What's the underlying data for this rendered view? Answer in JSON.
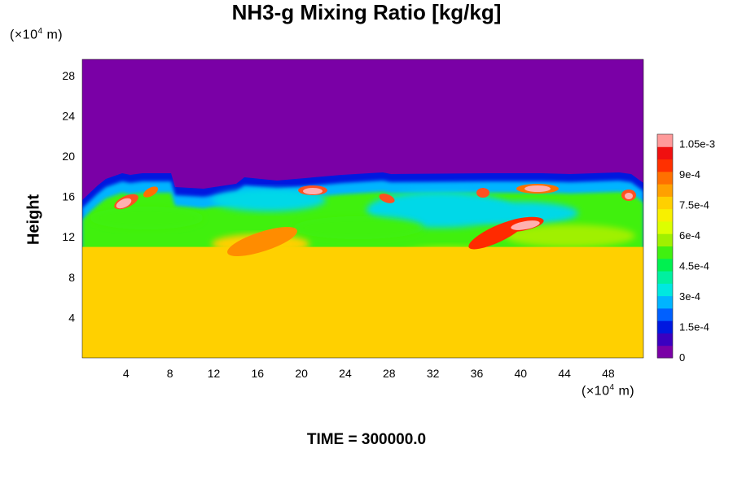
{
  "chart_data": {
    "type": "heatmap",
    "title": "NH3-g Mixing Ratio [kg/kg]",
    "ylabel": "Height",
    "xlabel": "",
    "x_unit_prefix": "(×10",
    "x_unit_exp": "4",
    "x_unit_suffix": " m)",
    "y_unit_prefix": "(×10",
    "y_unit_exp": "4",
    "y_unit_suffix": " m)",
    "xlim": [
      0,
      51.2
    ],
    "ylim": [
      0,
      29.6
    ],
    "xticks": [
      4,
      8,
      12,
      16,
      20,
      24,
      28,
      32,
      36,
      40,
      44,
      48
    ],
    "yticks": [
      4,
      8,
      12,
      16,
      20,
      24,
      28
    ],
    "colorbar": {
      "range": [
        0,
        0.0011
      ],
      "ticks": [
        {
          "value": 0,
          "label": "0"
        },
        {
          "value": 0.00015,
          "label": "1.5e-4"
        },
        {
          "value": 0.0003,
          "label": "3e-4"
        },
        {
          "value": 0.00045,
          "label": "4.5e-4"
        },
        {
          "value": 0.0006,
          "label": "6e-4"
        },
        {
          "value": 0.00075,
          "label": "7.5e-4"
        },
        {
          "value": 0.0009,
          "label": "9e-4"
        },
        {
          "value": 0.00105,
          "label": "1.05e-3"
        }
      ],
      "colors": [
        "#7a00a6",
        "#3a00c0",
        "#0018e0",
        "#0060ff",
        "#00b4ff",
        "#00e8e0",
        "#00f0a0",
        "#00f050",
        "#40f010",
        "#a0f000",
        "#dcff00",
        "#f8f000",
        "#ffd000",
        "#ffa000",
        "#ff7000",
        "#ff3000",
        "#f01010",
        "#ff9a9a"
      ]
    },
    "regions": [
      {
        "name": "lower-layer",
        "y_range": [
          0,
          11
        ],
        "value": 0.00075
      },
      {
        "name": "upper-layer",
        "y_range": [
          18.5,
          29.6
        ],
        "value": 0
      }
    ],
    "time_label": "TIME = 300000.0"
  }
}
